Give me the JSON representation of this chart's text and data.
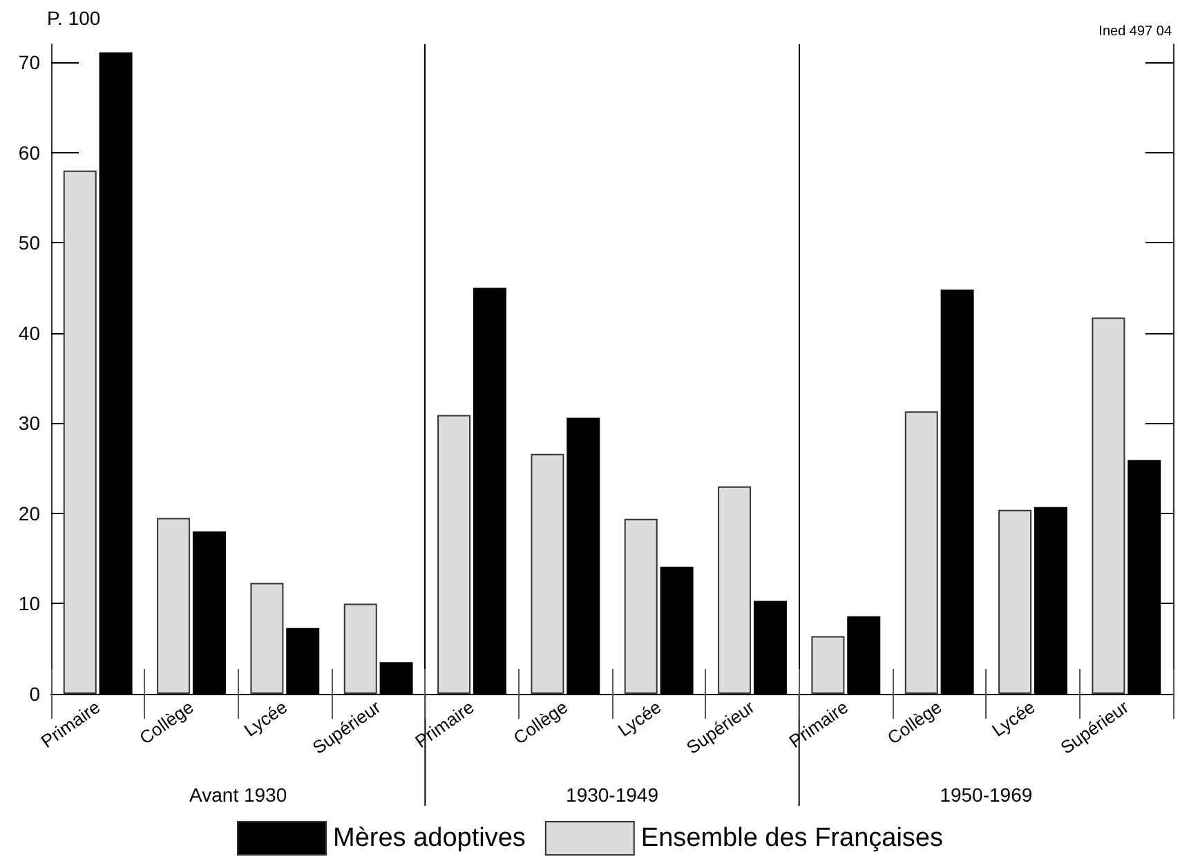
{
  "chart_data": {
    "type": "bar",
    "ylabel": "P. 100",
    "categories": [
      "Primaire",
      "Collège",
      "Lycée",
      "Supérieur",
      "Primaire",
      "Collège",
      "Lycée",
      "Supérieur",
      "Primaire",
      "Collège",
      "Lycée",
      "Supérieur"
    ],
    "series": [
      {
        "name": "Ensemble des Françaises",
        "color": "#dcdcdc",
        "values": [
          58.0,
          19.5,
          12.3,
          10.0,
          30.9,
          26.6,
          19.4,
          23.0,
          6.4,
          31.3,
          20.4,
          41.7
        ]
      },
      {
        "name": "Mères adoptives",
        "color": "#000000",
        "values": [
          71.1,
          18.0,
          7.3,
          3.5,
          45.0,
          30.6,
          14.1,
          10.3,
          8.6,
          44.8,
          20.7,
          25.9
        ]
      }
    ],
    "ylim": [
      0,
      72
    ],
    "yticks": [
      0,
      10,
      20,
      30,
      40,
      50,
      60,
      70
    ],
    "annotations": [
      "Avant 1930",
      "1930-1949",
      "1950-1969",
      "Ined 497 04"
    ],
    "grid": false,
    "legend": "bottom"
  }
}
